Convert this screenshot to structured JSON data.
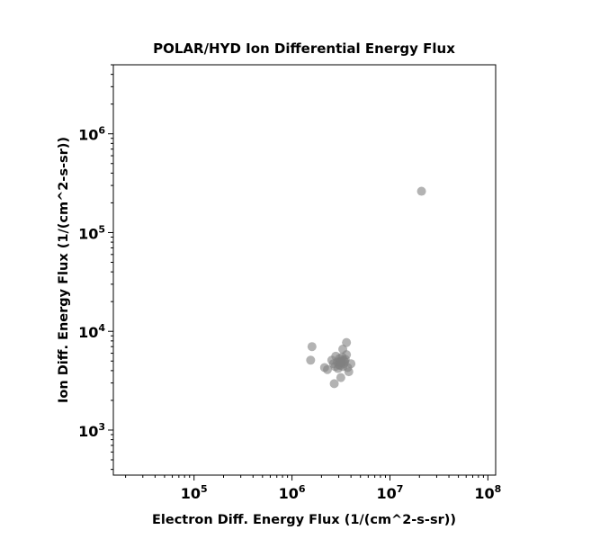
{
  "chart_data": {
    "type": "scatter",
    "title": "POLAR/HYD  Ion Differential Energy Flux",
    "xlabel": "Electron Diff. Energy Flux (1/(cm^2-s-sr))",
    "ylabel": "Ion Diff. Energy Flux (1/(cm^2-s-sr))",
    "x_scale": "log",
    "y_scale": "log",
    "xlim": [
      15000,
      120000000
    ],
    "ylim": [
      350,
      5000000
    ],
    "x_ticks": [
      {
        "base": "10",
        "exp": "5",
        "value": 100000
      },
      {
        "base": "10",
        "exp": "6",
        "value": 1000000
      },
      {
        "base": "10",
        "exp": "7",
        "value": 10000000
      },
      {
        "base": "10",
        "exp": "8",
        "value": 100000000
      }
    ],
    "y_ticks": [
      {
        "base": "10",
        "exp": "3",
        "value": 1000
      },
      {
        "base": "10",
        "exp": "4",
        "value": 10000
      },
      {
        "base": "10",
        "exp": "5",
        "value": 100000
      },
      {
        "base": "10",
        "exp": "6",
        "value": 1000000
      }
    ],
    "grid": false,
    "marker_color": "#808080",
    "points": [
      {
        "x": 21000000,
        "y": 262000
      },
      {
        "x": 1600000,
        "y": 7000
      },
      {
        "x": 1550000,
        "y": 5100
      },
      {
        "x": 3600000,
        "y": 7700
      },
      {
        "x": 3300000,
        "y": 6600
      },
      {
        "x": 2700000,
        "y": 2950
      },
      {
        "x": 3150000,
        "y": 3400
      },
      {
        "x": 2150000,
        "y": 4300
      },
      {
        "x": 2300000,
        "y": 4100
      },
      {
        "x": 2550000,
        "y": 5100
      },
      {
        "x": 2650000,
        "y": 4700
      },
      {
        "x": 2800000,
        "y": 5600
      },
      {
        "x": 2900000,
        "y": 4900
      },
      {
        "x": 3000000,
        "y": 4600
      },
      {
        "x": 3050000,
        "y": 5300
      },
      {
        "x": 3100000,
        "y": 4500
      },
      {
        "x": 3150000,
        "y": 5000
      },
      {
        "x": 3200000,
        "y": 4800
      },
      {
        "x": 3250000,
        "y": 5500
      },
      {
        "x": 3300000,
        "y": 4400
      },
      {
        "x": 3350000,
        "y": 5100
      },
      {
        "x": 3400000,
        "y": 4700
      },
      {
        "x": 3500000,
        "y": 5200
      },
      {
        "x": 3600000,
        "y": 5800
      },
      {
        "x": 3700000,
        "y": 4300
      },
      {
        "x": 3800000,
        "y": 3900
      },
      {
        "x": 4000000,
        "y": 4700
      },
      {
        "x": 2950000,
        "y": 4200
      },
      {
        "x": 3050000,
        "y": 4900
      },
      {
        "x": 2750000,
        "y": 4400
      },
      {
        "x": 3450000,
        "y": 4950
      }
    ]
  }
}
